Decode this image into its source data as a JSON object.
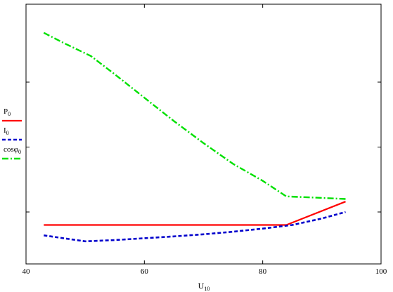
{
  "chart_data": {
    "type": "line",
    "xlabel": "U",
    "xlabel_sub": "10",
    "xlim": [
      40,
      100
    ],
    "x_ticks": [
      40,
      60,
      80,
      100
    ],
    "x_tick_labels": [
      "40",
      "60",
      "80",
      "100"
    ],
    "ylim": [
      0,
      100
    ],
    "y_ticks": [
      20,
      45,
      70
    ],
    "grid": false,
    "legend_placement": "left",
    "series": [
      {
        "name": "P",
        "name_sub": "0",
        "color": "#ff0000",
        "dash": "solid",
        "x": [
          43,
          84,
          94
        ],
        "y": [
          15,
          15,
          24
        ]
      },
      {
        "name": "I",
        "name_sub": "0",
        "color": "#0000cc",
        "dash": "dashed",
        "x": [
          43,
          46,
          50,
          55,
          60,
          65,
          70,
          75,
          80,
          85,
          90,
          94
        ],
        "y": [
          11,
          10,
          8.7,
          9.2,
          9.9,
          10.6,
          11.4,
          12.4,
          13.6,
          15,
          17.5,
          20
        ]
      },
      {
        "name": "cosφ",
        "name_sub": "0",
        "color": "#00e000",
        "dash": "dashdot",
        "x": [
          43,
          46,
          51,
          55,
          60,
          65,
          70,
          75,
          80,
          84,
          89,
          94
        ],
        "y": [
          89,
          85.5,
          80,
          73,
          64,
          55,
          46.5,
          38.5,
          32,
          26,
          25.5,
          25
        ]
      }
    ]
  }
}
